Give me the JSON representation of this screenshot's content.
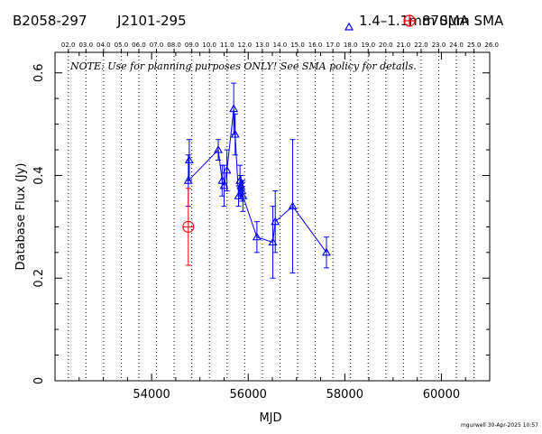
{
  "header": {
    "source_name": "B2058-297",
    "alt_name": "J2101-295"
  },
  "legend": {
    "sma_low_label": "1.4–1.1mm SMA",
    "sma_high_label": "870μm SMA"
  },
  "colors": {
    "sma_low": "#0000ff",
    "sma_high": "#ff0000",
    "axes": "#000000"
  },
  "note": "NOTE: Use for planning purposes ONLY!  See SMA policy for details.",
  "credit": "mgurwell 30-Apr-2025 10:57",
  "chart_data": {
    "type": "scatter",
    "xlabel": "MJD",
    "ylabel": "Database Flux (Jy)",
    "xlim": [
      52000,
      61000
    ],
    "ylim": [
      0,
      0.64
    ],
    "x_ticks": [
      54000,
      56000,
      58000,
      60000
    ],
    "y_ticks": [
      0,
      0.2,
      0.4,
      0.6
    ],
    "y_tick_labels": [
      "0",
      "0.2",
      "0.4",
      "0.6"
    ],
    "grid": "vertical dotted lines at top-axis year marks",
    "top_axis_labels": [
      "02.0",
      "03.0",
      "04.0",
      "05.0",
      "06.0",
      "07.0",
      "08.0",
      "09.0",
      "10.0",
      "11.0",
      "12.0",
      "13.0",
      "14.0",
      "15.0",
      "16.0",
      "17.0",
      "18.0",
      "19.0",
      "20.0",
      "21.0",
      "22.0",
      "23.0",
      "24.0",
      "25.0",
      "26.0"
    ],
    "top_axis_mjd": [
      52275,
      52640,
      53005,
      53371,
      53736,
      54101,
      54466,
      54832,
      55197,
      55562,
      55927,
      56293,
      56658,
      57023,
      57388,
      57754,
      58119,
      58484,
      58849,
      59215,
      59580,
      59945,
      60310,
      60676,
      61041
    ],
    "series": [
      {
        "name": "1.4–1.1mm SMA",
        "marker": "triangle",
        "connected": true,
        "points": [
          {
            "x": 54780,
            "y": 0.43,
            "err": 0.04
          },
          {
            "x": 54760,
            "y": 0.39,
            "err": 0.05
          },
          {
            "x": 55380,
            "y": 0.45,
            "err": 0.02
          },
          {
            "x": 55460,
            "y": 0.39,
            "err": 0.03
          },
          {
            "x": 55500,
            "y": 0.38,
            "err": 0.04
          },
          {
            "x": 55560,
            "y": 0.41,
            "err": 0.04
          },
          {
            "x": 55700,
            "y": 0.53,
            "err": 0.05
          },
          {
            "x": 55730,
            "y": 0.48,
            "err": 0.04
          },
          {
            "x": 55800,
            "y": 0.36,
            "err": 0.02
          },
          {
            "x": 55830,
            "y": 0.39,
            "err": 0.03
          },
          {
            "x": 55850,
            "y": 0.38,
            "err": 0.02
          },
          {
            "x": 55870,
            "y": 0.37,
            "err": 0.02
          },
          {
            "x": 55890,
            "y": 0.36,
            "err": 0.03
          },
          {
            "x": 56180,
            "y": 0.28,
            "err": 0.03
          },
          {
            "x": 56510,
            "y": 0.27,
            "err": 0.07
          },
          {
            "x": 56560,
            "y": 0.31,
            "err": 0.06
          },
          {
            "x": 56920,
            "y": 0.34,
            "err": 0.13
          },
          {
            "x": 57620,
            "y": 0.25,
            "err": 0.03
          }
        ]
      },
      {
        "name": "870μm SMA",
        "marker": "circle-plus",
        "connected": false,
        "points": [
          {
            "x": 54760,
            "y": 0.3,
            "err": 0.075
          }
        ]
      }
    ]
  }
}
